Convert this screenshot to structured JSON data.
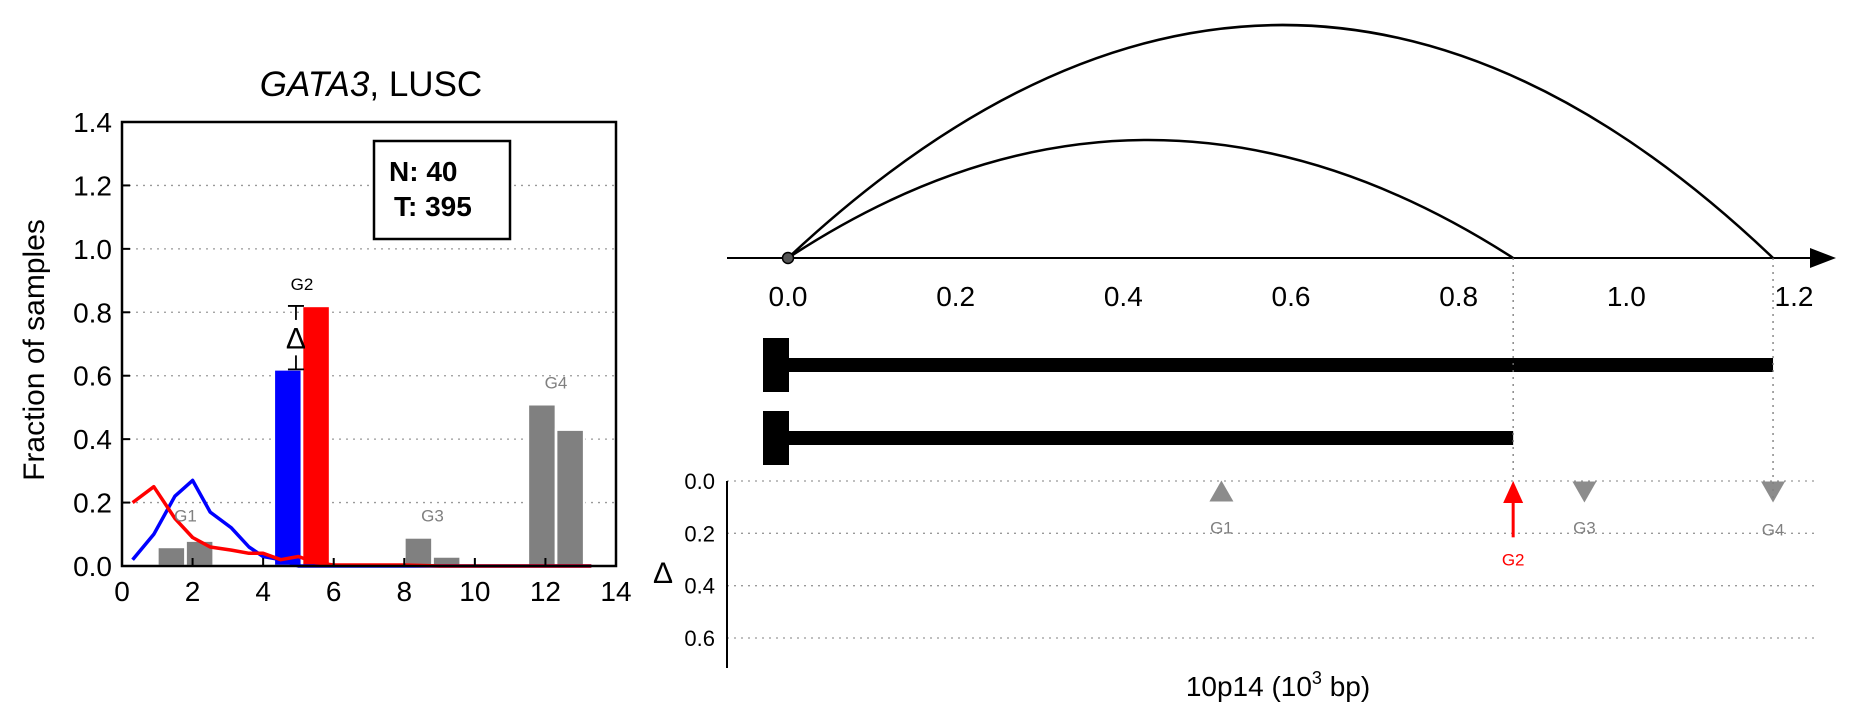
{
  "chart_data": [
    {
      "type": "bar",
      "title": {
        "gene": "GATA3",
        "rest": ", LUSC"
      },
      "ylabel": "Fraction of samples",
      "xlim": [
        0,
        14
      ],
      "ylim": [
        0,
        1.4
      ],
      "xticks": [
        0,
        2,
        4,
        6,
        8,
        10,
        12,
        14
      ],
      "yticks": [
        0.0,
        0.2,
        0.4,
        0.6,
        0.8,
        1.0,
        1.2,
        1.4
      ],
      "tick_labels_x": [
        "0",
        "2",
        "4",
        "6",
        "8",
        "10",
        "12",
        "14"
      ],
      "tick_labels_y": [
        "0.0",
        "0.2",
        "0.4",
        "0.6",
        "0.8",
        "1.0",
        "1.2",
        "1.4"
      ],
      "grid": "horizontal dotted",
      "counts_box": {
        "n": "N: 40",
        "t": "T: 395"
      },
      "delta_symbol": "Δ",
      "bars": [
        {
          "x": 1.4,
          "value": 0.06,
          "color": "#808080"
        },
        {
          "x": 2.2,
          "value": 0.08,
          "color": "#808080"
        },
        {
          "x": 4.7,
          "value": 0.62,
          "color": "#0000ff"
        },
        {
          "x": 5.5,
          "value": 0.82,
          "color": "#ff0000"
        },
        {
          "x": 8.4,
          "value": 0.09,
          "color": "#808080"
        },
        {
          "x": 9.2,
          "value": 0.03,
          "color": "#808080"
        },
        {
          "x": 11.9,
          "value": 0.51,
          "color": "#808080"
        },
        {
          "x": 12.7,
          "value": 0.43,
          "color": "#808080"
        }
      ],
      "group_labels": [
        {
          "text": "G1",
          "x": 1.8,
          "y": 0.14
        },
        {
          "text": "G2",
          "x": 5.1,
          "y": 0.87
        },
        {
          "text": "G3",
          "x": 8.8,
          "y": 0.14
        },
        {
          "text": "G4",
          "x": 12.3,
          "y": 0.56
        }
      ],
      "series": [
        {
          "color": "#0000ff",
          "x": [
            0.3,
            0.9,
            1.5,
            2.0,
            2.5,
            3.1,
            3.6,
            4.0,
            4.5,
            5.0,
            5.5,
            6,
            7,
            8,
            9,
            10,
            11,
            12,
            13.3
          ],
          "y": [
            0.02,
            0.1,
            0.22,
            0.27,
            0.17,
            0.12,
            0.06,
            0.03,
            0.02,
            0.0,
            0.0,
            0.0,
            0.0,
            0.0,
            0.0,
            0.0,
            0.0,
            0.0,
            0.0
          ]
        },
        {
          "color": "#ff0000",
          "x": [
            0.3,
            0.9,
            1.5,
            2.0,
            2.5,
            3.1,
            3.6,
            4.0,
            4.5,
            5.0,
            5.5,
            6,
            7,
            8,
            9,
            10,
            11,
            12,
            13.3
          ],
          "y": [
            0.2,
            0.25,
            0.15,
            0.09,
            0.06,
            0.05,
            0.04,
            0.04,
            0.02,
            0.03,
            0.01,
            0.003,
            0.003,
            0.003,
            0.0,
            0.0,
            0.0,
            0.0,
            0.0
          ]
        }
      ],
      "delta_range": [
        0.62,
        0.82
      ]
    },
    {
      "type": "arc-diagram",
      "xlabel": {
        "prefix": "10p14 (10",
        "sup": "3",
        "suffix": " bp)"
      },
      "xlim": [
        0,
        1.2
      ],
      "xticks": [
        0.0,
        0.2,
        0.4,
        0.6,
        0.8,
        1.0,
        1.2
      ],
      "tick_labels_x": [
        "0.0",
        "0.2",
        "0.4",
        "0.6",
        "0.8",
        "1.0",
        "1.2"
      ],
      "origin": 0.0,
      "arcs": [
        {
          "start": 0.0,
          "end": 0.865,
          "peak": 0.43
        },
        {
          "start": 0.0,
          "end": 1.175,
          "peak": 0.59
        }
      ],
      "segments": [
        {
          "start": 0.0,
          "end": 1.175
        },
        {
          "start": 0.0,
          "end": 0.865
        }
      ],
      "delta_panel": {
        "ylabel": "Δ",
        "ylim": [
          0.0,
          0.7
        ],
        "yticks": [
          0.0,
          0.2,
          0.4,
          0.6
        ],
        "tick_labels_y": [
          "0.0",
          "0.2",
          "0.4",
          "0.6"
        ],
        "markers": [
          {
            "label": "G1",
            "x": 0.517,
            "delta": 0.04,
            "direction": "up",
            "color": "#808080"
          },
          {
            "label": "G2",
            "x": 0.865,
            "delta": 0.2,
            "direction": "up-arrow",
            "color": "#ff0000"
          },
          {
            "label": "G3",
            "x": 0.95,
            "delta": 0.04,
            "direction": "down",
            "color": "#808080"
          },
          {
            "label": "G4",
            "x": 1.175,
            "delta": 0.04,
            "direction": "down",
            "color": "#808080"
          }
        ]
      }
    }
  ]
}
